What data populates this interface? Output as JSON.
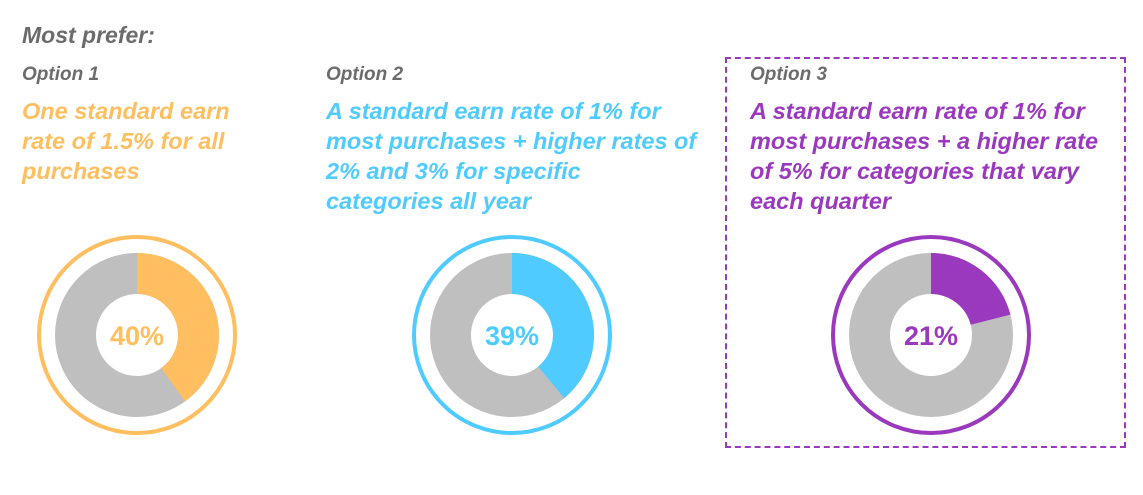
{
  "header": "Most prefer:",
  "colors": {
    "gray": "#bfbfbf",
    "label": "#6b6b6b"
  },
  "chart_data": {
    "type": "pie",
    "charts": [
      {
        "option": "Option 1",
        "description": "One standard earn rate of 1.5% for all purchases",
        "value": 40,
        "label": "40%",
        "color": "#ffbe5f",
        "highlighted": false
      },
      {
        "option": "Option 2",
        "description": "A standard earn rate of 1% for most purchases + higher rates of 2% and 3% for specific categories all year",
        "value": 39,
        "label": "39%",
        "color": "#4fcbff",
        "highlighted": false
      },
      {
        "option": "Option 3",
        "description": "A standard earn rate of 1% for most purchases + a higher rate of 5% for categories that vary each quarter",
        "value": 21,
        "label": "21%",
        "color": "#9a39be",
        "highlighted": true
      }
    ]
  }
}
